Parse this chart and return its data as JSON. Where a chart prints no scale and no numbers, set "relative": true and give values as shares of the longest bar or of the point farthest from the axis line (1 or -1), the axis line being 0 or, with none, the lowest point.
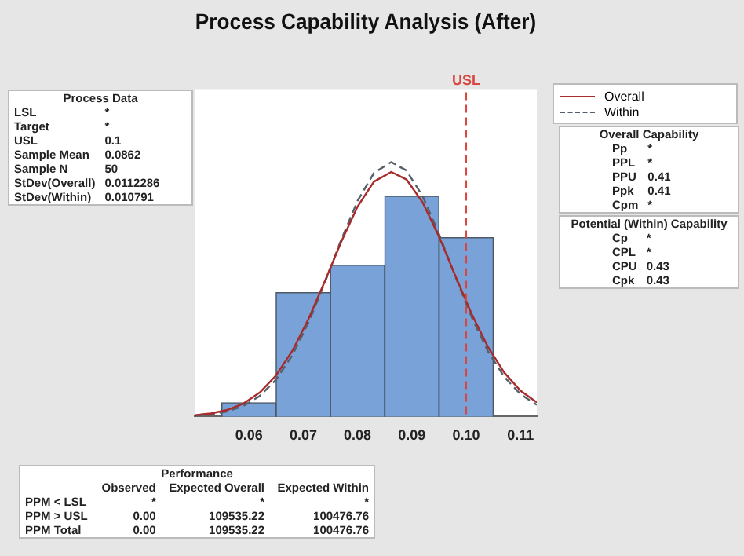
{
  "chart_data": {
    "type": "histogram",
    "title": "Process Capability Analysis (After)",
    "relative": true,
    "bins": [
      0.055,
      0.065,
      0.075,
      0.085,
      0.095,
      0.105
    ],
    "values": [
      0.054,
      0.487,
      0.595,
      0.866,
      0.703
    ],
    "color": "#79a3d8",
    "series": [
      {
        "name": "Overall",
        "type": "line",
        "color": "#a82a2a",
        "line_style": "solid",
        "x": [
          0.05,
          0.053,
          0.056,
          0.059,
          0.062,
          0.065,
          0.068,
          0.071,
          0.074,
          0.077,
          0.08,
          0.083,
          0.0862,
          0.089,
          0.092,
          0.095,
          0.098,
          0.101,
          0.104,
          0.107,
          0.11,
          0.113
        ],
        "values": [
          0.0053,
          0.0121,
          0.0258,
          0.0511,
          0.0943,
          0.1617,
          0.2583,
          0.3845,
          0.5327,
          0.6871,
          0.8251,
          0.9228,
          0.961,
          0.9316,
          0.841,
          0.7069,
          0.5532,
          0.4031,
          0.2736,
          0.1728,
          0.1017,
          0.0556
        ]
      },
      {
        "name": "Within",
        "type": "line",
        "color": "#55606a",
        "line_style": "dashed",
        "x": [
          0.05,
          0.053,
          0.056,
          0.059,
          0.062,
          0.065,
          0.068,
          0.071,
          0.074,
          0.077,
          0.08,
          0.083,
          0.0862,
          0.089,
          0.092,
          0.095,
          0.098,
          0.101,
          0.104,
          0.107,
          0.11,
          0.113
        ],
        "values": [
          0.0036,
          0.0088,
          0.0199,
          0.0417,
          0.0808,
          0.1451,
          0.241,
          0.3708,
          0.5278,
          0.6952,
          0.8478,
          0.957,
          1,
          0.9669,
          0.8655,
          0.7171,
          0.55,
          0.3904,
          0.2565,
          0.1561,
          0.0878,
          0.0458
        ]
      }
    ],
    "xlim": [
      0.05,
      0.113
    ],
    "xticks": [
      0.06,
      0.07,
      0.08,
      0.09,
      {
        "value": 0.1,
        "label": "0.10"
      },
      0.11
    ],
    "ref_lines": [
      {
        "axis": "x",
        "value": 0.1,
        "label": "USL",
        "color": "#d9463f",
        "line_style": "dashed"
      }
    ],
    "grid": false,
    "legend": "top right",
    "annotations": [
      "Process Data",
      "LSL",
      "*",
      "Target",
      "*",
      "USL",
      "0.1",
      "Sample Mean",
      "0.0862",
      "Sample N",
      "50",
      "StDev(Overall)",
      "0.0112286",
      "StDev(Within)",
      "0.010791",
      "Overall Capability",
      "Pp",
      "*",
      "PPL",
      "*",
      "PPU",
      "0.41",
      "Ppk",
      "0.41",
      "Cpm",
      "*",
      "Potential (Within) Capability",
      "Cp",
      "*",
      "CPL",
      "*",
      "CPU",
      "0.43",
      "Cpk",
      "0.43",
      "Performance",
      "Observed",
      "Expected Overall",
      "Expected Within",
      "PPM < LSL",
      "*",
      "*",
      "*",
      "PPM > USL",
      "0.00",
      "109535.22",
      "100476.76",
      "PPM Total",
      "0.00",
      "109535.22",
      "100476.76"
    ]
  }
}
